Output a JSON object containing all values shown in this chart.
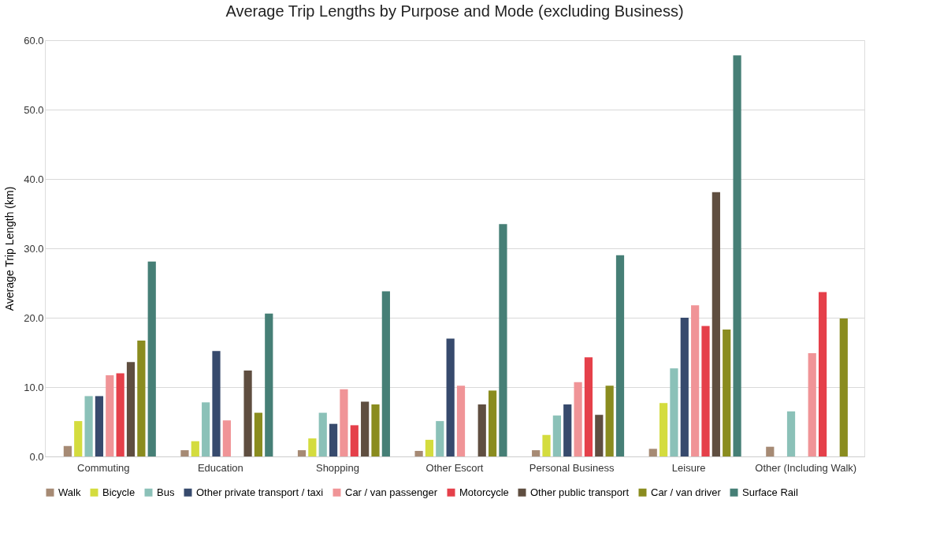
{
  "chart_data": {
    "type": "bar",
    "title": "Average Trip Lengths by Purpose and Mode (excluding Business)",
    "ylabel": "Average Trip Length (km)",
    "categories": [
      "Commuting",
      "Education",
      "Shopping",
      "Other Escort",
      "Personal Business",
      "Leisure",
      "Other (Including Walk)"
    ],
    "series": [
      {
        "name": "Walk",
        "color": "#a68a74",
        "values": [
          1.5,
          0.9,
          0.9,
          0.8,
          0.9,
          1.1,
          1.4
        ]
      },
      {
        "name": "Bicycle",
        "color": "#d4dc3e",
        "values": [
          5.1,
          2.2,
          2.6,
          2.4,
          3.1,
          7.7,
          null
        ]
      },
      {
        "name": "Bus",
        "color": "#8bc1b8",
        "values": [
          8.7,
          7.8,
          6.3,
          5.1,
          5.9,
          12.7,
          6.5
        ]
      },
      {
        "name": "Other private transport / taxi",
        "color": "#374a6d",
        "values": [
          8.7,
          15.2,
          4.7,
          17.0,
          7.5,
          20.0,
          null
        ]
      },
      {
        "name": "Car / van passenger",
        "color": "#f09497",
        "values": [
          11.7,
          5.2,
          9.7,
          10.2,
          10.7,
          21.8,
          14.9
        ]
      },
      {
        "name": "Motorcycle",
        "color": "#e5404a",
        "values": [
          12.0,
          null,
          4.5,
          null,
          14.3,
          18.8,
          23.7
        ]
      },
      {
        "name": "Other public transport",
        "color": "#5f4e40",
        "values": [
          13.6,
          12.4,
          7.9,
          7.5,
          6.0,
          38.1,
          null
        ]
      },
      {
        "name": "Car / van driver",
        "color": "#8a8c1f",
        "values": [
          16.7,
          6.3,
          7.5,
          9.5,
          10.2,
          18.3,
          19.9
        ]
      },
      {
        "name": "Surface Rail",
        "color": "#467f76",
        "values": [
          28.1,
          20.6,
          23.8,
          33.5,
          29.0,
          57.8,
          null
        ]
      }
    ],
    "ylim": [
      0,
      60
    ],
    "yticks": [
      {
        "value": 0,
        "label": "0.0"
      },
      {
        "value": 10,
        "label": "10.0"
      },
      {
        "value": 20,
        "label": "20.0"
      },
      {
        "value": 30,
        "label": "30.0"
      },
      {
        "value": 40,
        "label": "40.0"
      },
      {
        "value": 50,
        "label": "50.0"
      },
      {
        "value": 60,
        "label": "60.0"
      }
    ],
    "grid": "y",
    "legend": "bottom"
  }
}
